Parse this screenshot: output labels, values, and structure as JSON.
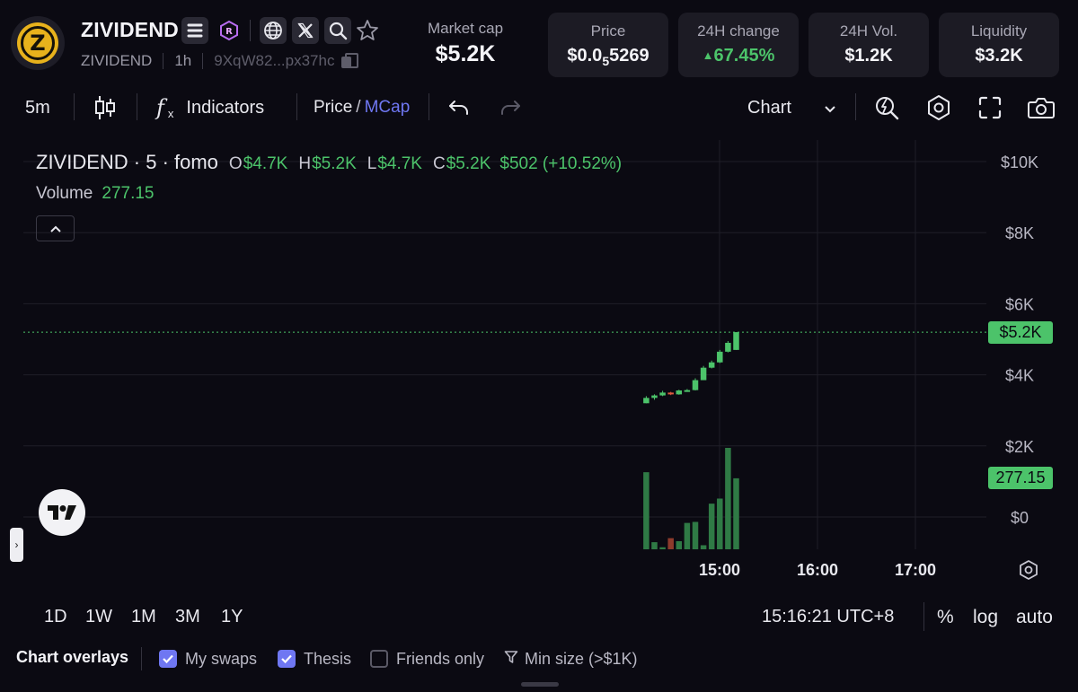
{
  "token": {
    "name": "ZIVIDEND",
    "ticker": "ZIVIDEND",
    "age": "1h",
    "address": "9XqW82...px37hc"
  },
  "stats": {
    "market_cap": {
      "label": "Market cap",
      "value": "$5.2K"
    },
    "price": {
      "label": "Price",
      "prefix": "$0.0",
      "zeros": "5",
      "suffix": "5269"
    },
    "change_24h": {
      "label": "24H change",
      "value": "67.45%",
      "arrow": "▲"
    },
    "volume_24h": {
      "label": "24H Vol.",
      "value": "$1.2K"
    },
    "liquidity": {
      "label": "Liquidity",
      "value": "$3.2K"
    }
  },
  "toolbar": {
    "interval": "5m",
    "indicators_label": "Indicators",
    "price_label": "Price",
    "slash": "/",
    "mcap_label": "MCap",
    "chart_label": "Chart"
  },
  "legend": {
    "symbol": "ZIVIDEND · 5 · fomo",
    "o_label": "O",
    "o_value": "$4.7K",
    "h_label": "H",
    "h_value": "$5.2K",
    "l_label": "L",
    "l_value": "$4.7K",
    "c_label": "C",
    "c_value": "$5.2K",
    "change": "$502 (+10.52%)",
    "volume_label": "Volume",
    "volume_value": "277.15"
  },
  "colors": {
    "up": "#4cc36a",
    "down": "#e0593f",
    "accent": "#6f77f2",
    "background": "#0b0a12"
  },
  "chart_data": {
    "type": "candlestick",
    "y_axis": {
      "ticks": [
        "$10K",
        "$8K",
        "$6K",
        "$4K",
        "$2K",
        "$0"
      ],
      "values": [
        10000,
        8000,
        6000,
        4000,
        2000,
        0
      ],
      "ylim": [
        0,
        10000
      ]
    },
    "x_axis": {
      "ticks": [
        "15:00",
        "16:00",
        "17:00"
      ]
    },
    "last_price_label": "$5.2K",
    "last_price": 5200,
    "last_volume_label": "277.15",
    "candles": [
      {
        "o": 3200,
        "h": 3400,
        "l": 3200,
        "c": 3350,
        "dir": "up"
      },
      {
        "o": 3350,
        "h": 3450,
        "l": 3300,
        "c": 3420,
        "dir": "up"
      },
      {
        "o": 3420,
        "h": 3550,
        "l": 3400,
        "c": 3500,
        "dir": "up"
      },
      {
        "o": 3500,
        "h": 3520,
        "l": 3430,
        "c": 3450,
        "dir": "down"
      },
      {
        "o": 3450,
        "h": 3580,
        "l": 3440,
        "c": 3560,
        "dir": "up"
      },
      {
        "o": 3560,
        "h": 3600,
        "l": 3520,
        "c": 3570,
        "dir": "up"
      },
      {
        "o": 3570,
        "h": 3900,
        "l": 3560,
        "c": 3850,
        "dir": "up"
      },
      {
        "o": 3850,
        "h": 4250,
        "l": 3850,
        "c": 4200,
        "dir": "up"
      },
      {
        "o": 4200,
        "h": 4400,
        "l": 4180,
        "c": 4350,
        "dir": "up"
      },
      {
        "o": 4350,
        "h": 4700,
        "l": 4330,
        "c": 4650,
        "dir": "up"
      },
      {
        "o": 4650,
        "h": 4950,
        "l": 4630,
        "c": 4900,
        "dir": "up"
      },
      {
        "o": 4700,
        "h": 5200,
        "l": 4700,
        "c": 5200,
        "dir": "up"
      }
    ],
    "volumes": [
      {
        "v": 0.76,
        "dir": "up"
      },
      {
        "v": 0.07,
        "dir": "up"
      },
      {
        "v": 0.02,
        "dir": "up"
      },
      {
        "v": 0.11,
        "dir": "down"
      },
      {
        "v": 0.08,
        "dir": "up"
      },
      {
        "v": 0.26,
        "dir": "up"
      },
      {
        "v": 0.27,
        "dir": "up"
      },
      {
        "v": 0.04,
        "dir": "up"
      },
      {
        "v": 0.45,
        "dir": "up"
      },
      {
        "v": 0.5,
        "dir": "up"
      },
      {
        "v": 1.0,
        "dir": "up"
      },
      {
        "v": 0.7,
        "dir": "up"
      }
    ]
  },
  "ranges": [
    "1D",
    "1W",
    "1M",
    "3M",
    "1Y"
  ],
  "time_readout": "15:16:21 UTC+8",
  "scale_options": {
    "percent": "%",
    "log": "log",
    "auto": "auto"
  },
  "overlays": {
    "title": "Chart overlays",
    "my_swaps": "My swaps",
    "thesis": "Thesis",
    "friends_only": "Friends only",
    "min_size": "Min size (>$1K)"
  }
}
